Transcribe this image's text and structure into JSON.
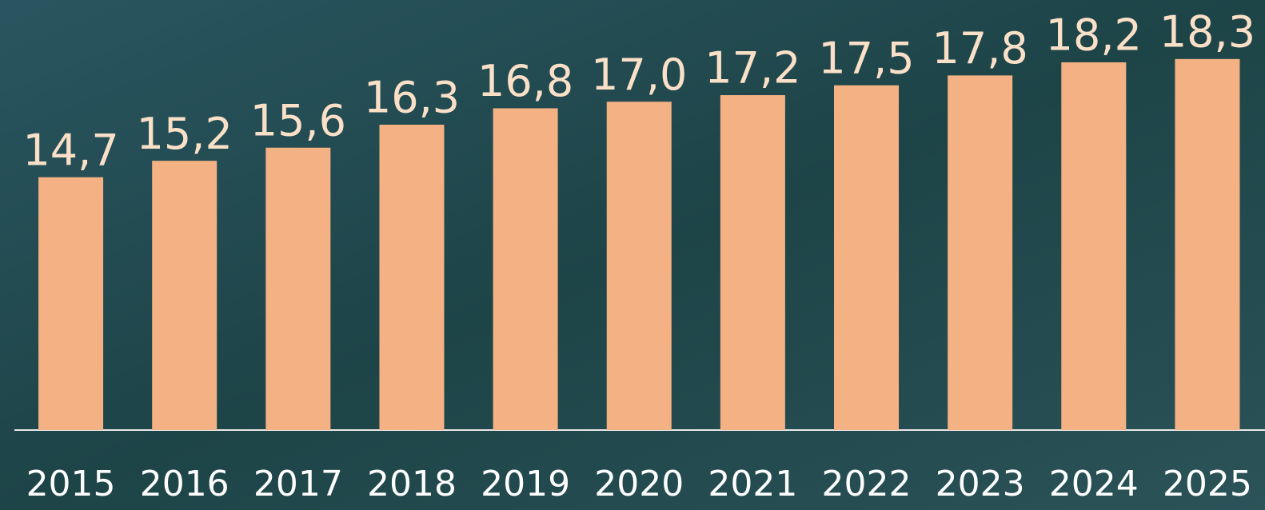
{
  "chart_data": {
    "type": "bar",
    "categories": [
      "2015",
      "2016",
      "2017",
      "2018",
      "2019",
      "2020",
      "2021",
      "2022",
      "2023",
      "2024",
      "2025"
    ],
    "values": [
      14.7,
      15.2,
      15.6,
      16.3,
      16.8,
      17.0,
      17.2,
      17.5,
      17.8,
      18.2,
      18.3
    ],
    "value_labels": [
      "14,7",
      "15,2",
      "15,6",
      "16,3",
      "16,8",
      "17,0",
      "17,2",
      "17,5",
      "17,8",
      "18,2",
      "18,3"
    ],
    "color": "#f4b183",
    "ylim": [
      7,
      20
    ]
  }
}
